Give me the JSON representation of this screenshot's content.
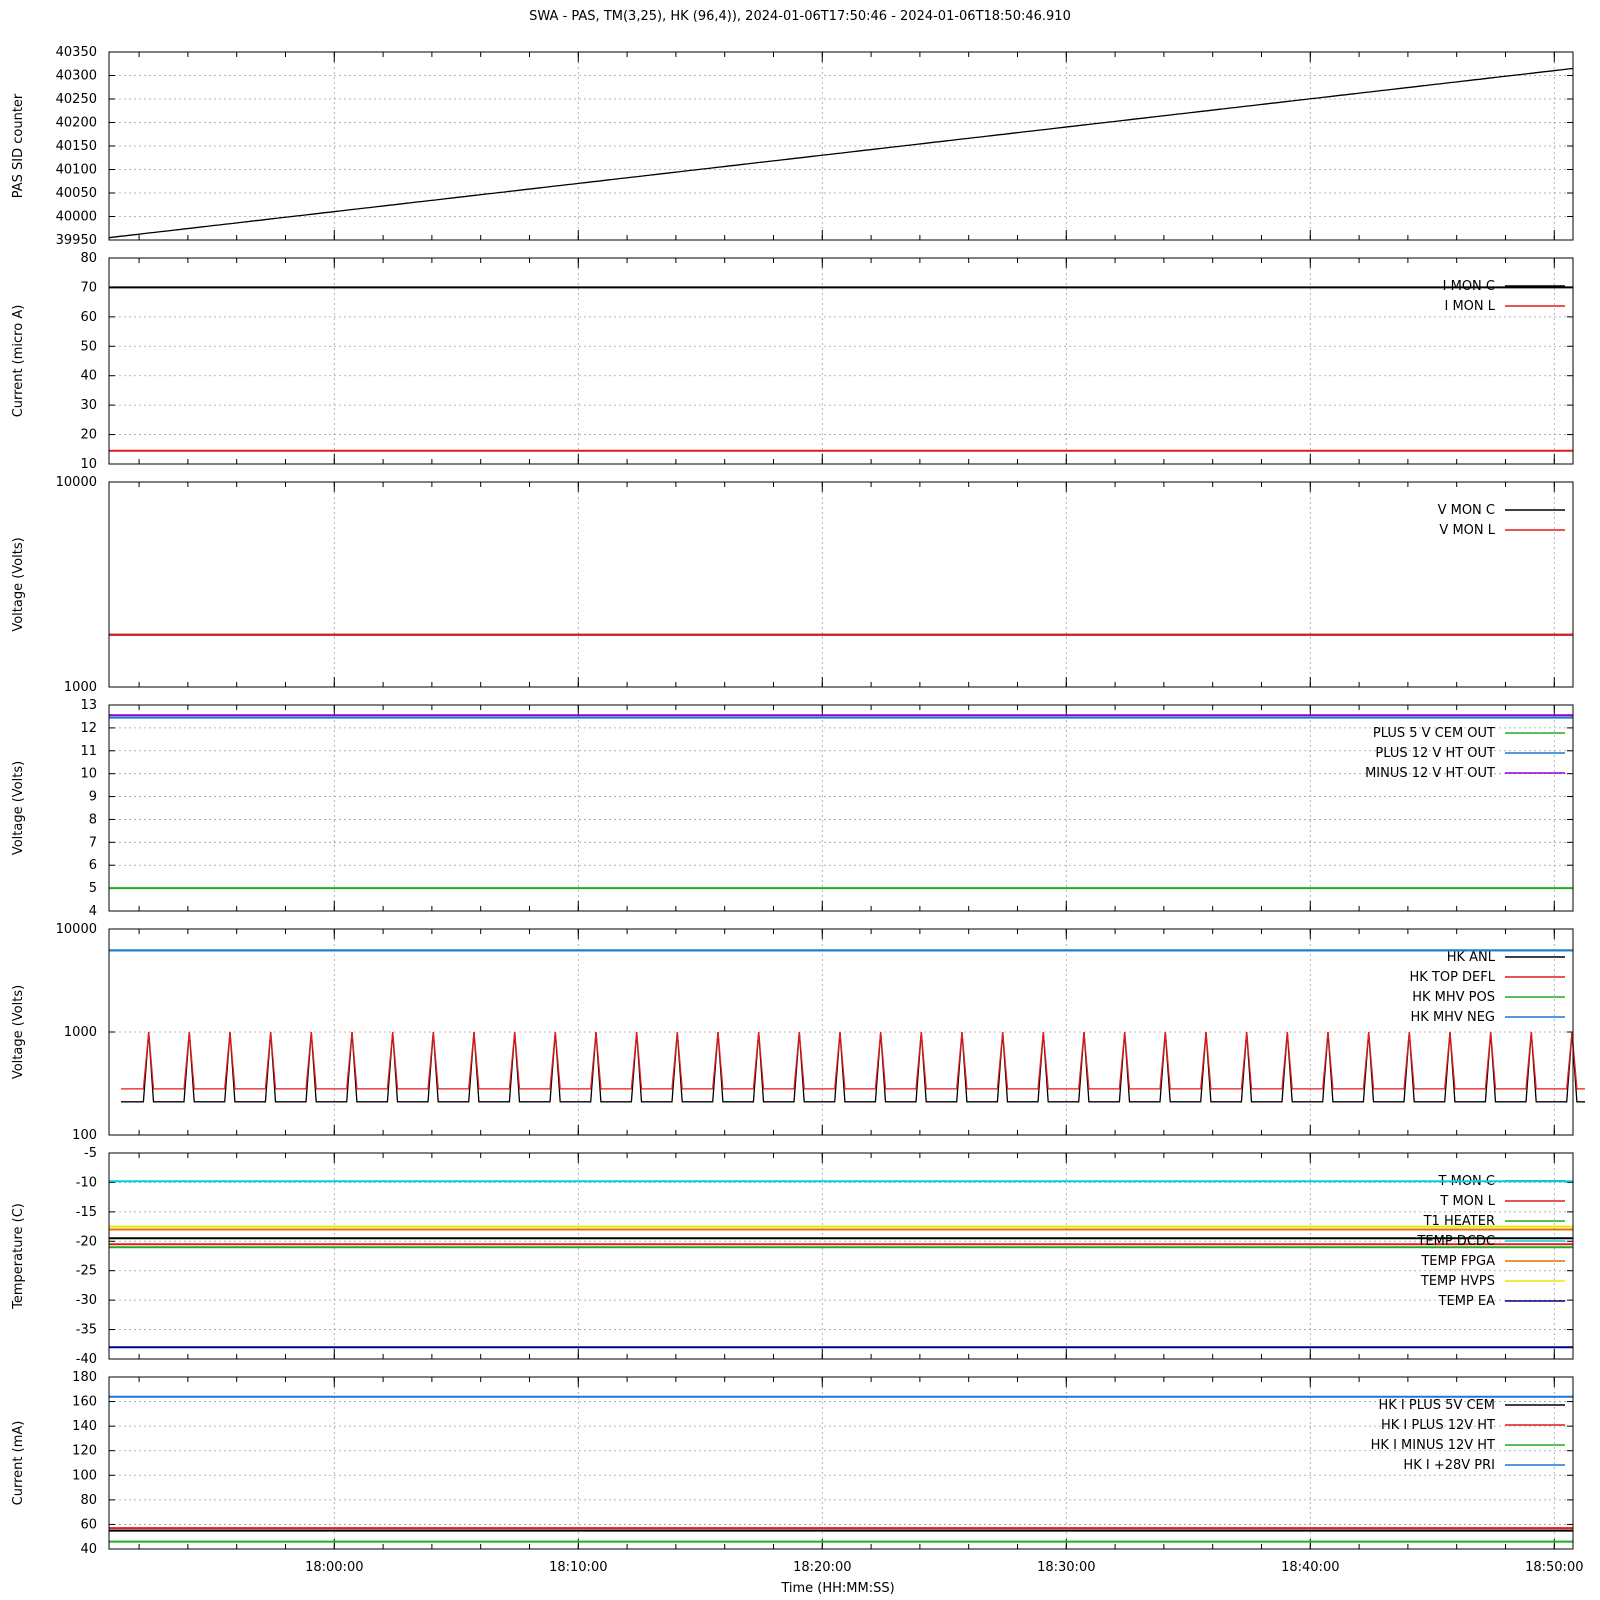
{
  "title": "SWA - PAS, TM(3,25), HK (96,4)),  2024-01-06T17:50:46 - 2024-01-06T18:50:46.910",
  "xlabel": "Time (HH:MM:SS)",
  "colors": {
    "black": "#000000",
    "red": "#e41a1c",
    "green": "#22aa22",
    "blue": "#1f77d4",
    "purple": "#9400d3",
    "cyan": "#00d0e0",
    "orange": "#e07000",
    "yellow": "#e8e800",
    "navy": "#000080",
    "grid": "#a0a0a0"
  },
  "chart_data": [
    {
      "type": "line",
      "x_range": [
        "17:50:46",
        "18:50:46"
      ],
      "x_ticks": [
        "18:00:00",
        "18:10:00",
        "18:20:00",
        "18:30:00",
        "18:40:00",
        "18:50:00"
      ],
      "ylabel": "PAS SID counter",
      "ylim": [
        39950,
        40350
      ],
      "y_ticks": [
        "39950",
        "40000",
        "40050",
        "40100",
        "40150",
        "40200",
        "40250",
        "40300",
        "40350"
      ],
      "log": false,
      "grid": true,
      "series": [
        {
          "color": "black",
          "profile": "linear",
          "start": 39955,
          "end": 40315
        }
      ]
    },
    {
      "type": "line",
      "ylabel": "Current (micro A)",
      "ylim": [
        10,
        80
      ],
      "y_ticks": [
        "10",
        "20",
        "30",
        "40",
        "50",
        "60",
        "70",
        "80"
      ],
      "log": false,
      "grid": true,
      "legend": "top-right",
      "series": [
        {
          "name": "I MON C",
          "color": "black",
          "profile": "flat",
          "value": 70
        },
        {
          "name": "I MON L",
          "color": "red",
          "profile": "flat",
          "value": 14.5
        }
      ]
    },
    {
      "type": "line",
      "ylabel": "Voltage (Volts)",
      "ylim": [
        1000,
        10000
      ],
      "y_ticks": [
        "1000",
        "10000"
      ],
      "log": true,
      "grid": true,
      "legend": "top-right",
      "series": [
        {
          "name": "V MON C",
          "color": "black",
          "profile": "flat",
          "value": 1800
        },
        {
          "name": "V MON L",
          "color": "red",
          "profile": "flat",
          "value": 1800
        }
      ]
    },
    {
      "type": "line",
      "ylabel": "Voltage (Volts)",
      "ylim": [
        4,
        13
      ],
      "y_ticks": [
        "4",
        "5",
        "6",
        "7",
        "8",
        "9",
        "10",
        "11",
        "12",
        "13"
      ],
      "log": false,
      "grid": true,
      "legend": "top-right",
      "series": [
        {
          "name": "PLUS 5 V CEM OUT",
          "color": "green",
          "profile": "flat",
          "value": 5.0
        },
        {
          "name": "PLUS 12 V HT OUT",
          "color": "blue",
          "profile": "flat",
          "value": 12.45
        },
        {
          "name": "MINUS 12 V HT OUT",
          "color": "purple",
          "profile": "flat",
          "value": 12.55
        }
      ]
    },
    {
      "type": "line",
      "ylabel": "Voltage (Volts)",
      "ylim": [
        100,
        10000
      ],
      "y_ticks": [
        "100",
        "1000",
        "10000"
      ],
      "log": true,
      "grid": true,
      "legend": "top-right",
      "series": [
        {
          "name": "HK ANL",
          "color": "black",
          "profile": "spikes",
          "base": 210,
          "peak": 1000
        },
        {
          "name": "HK TOP DEFL",
          "color": "red",
          "profile": "spikes",
          "base": 280,
          "peak": 1000
        },
        {
          "name": "HK MHV POS",
          "color": "green",
          "profile": "flat",
          "value": 6200
        },
        {
          "name": "HK MHV NEG",
          "color": "blue",
          "profile": "flat",
          "value": 6200
        }
      ]
    },
    {
      "type": "line",
      "ylabel": "Temperature (C)",
      "ylim": [
        -40,
        -5
      ],
      "y_ticks": [
        "-40",
        "-35",
        "-30",
        "-25",
        "-20",
        "-15",
        "-10",
        "-5"
      ],
      "log": false,
      "grid": true,
      "legend": "top-right",
      "series": [
        {
          "name": "T MON C",
          "color": "black",
          "profile": "flat",
          "value": -19.5
        },
        {
          "name": "T MON L",
          "color": "red",
          "profile": "flat",
          "value": -20.5
        },
        {
          "name": "T1 HEATER",
          "color": "green",
          "profile": "flat",
          "value": -21.0
        },
        {
          "name": "TEMP DCDC",
          "color": "cyan",
          "profile": "flat",
          "value": -9.8
        },
        {
          "name": "TEMP FPGA",
          "color": "orange",
          "profile": "flat",
          "value": -18.0
        },
        {
          "name": "TEMP HVPS",
          "color": "yellow",
          "profile": "flat",
          "value": -17.5
        },
        {
          "name": "TEMP EA",
          "color": "navy",
          "profile": "flat",
          "value": -38.0
        }
      ]
    },
    {
      "type": "line",
      "ylabel": "Current (mA)",
      "ylim": [
        40,
        180
      ],
      "y_ticks": [
        "40",
        "60",
        "80",
        "100",
        "120",
        "140",
        "160",
        "180"
      ],
      "log": false,
      "grid": true,
      "legend": "top-right",
      "series": [
        {
          "name": "HK I PLUS 5V CEM",
          "color": "black",
          "profile": "flat",
          "value": 55
        },
        {
          "name": "HK I PLUS 12V HT",
          "color": "red",
          "profile": "flat",
          "value": 57
        },
        {
          "name": "HK I MINUS 12V HT",
          "color": "green",
          "profile": "flat",
          "value": 46
        },
        {
          "name": "HK I +28V PRI",
          "color": "blue",
          "profile": "flat",
          "value": 164
        }
      ]
    }
  ]
}
